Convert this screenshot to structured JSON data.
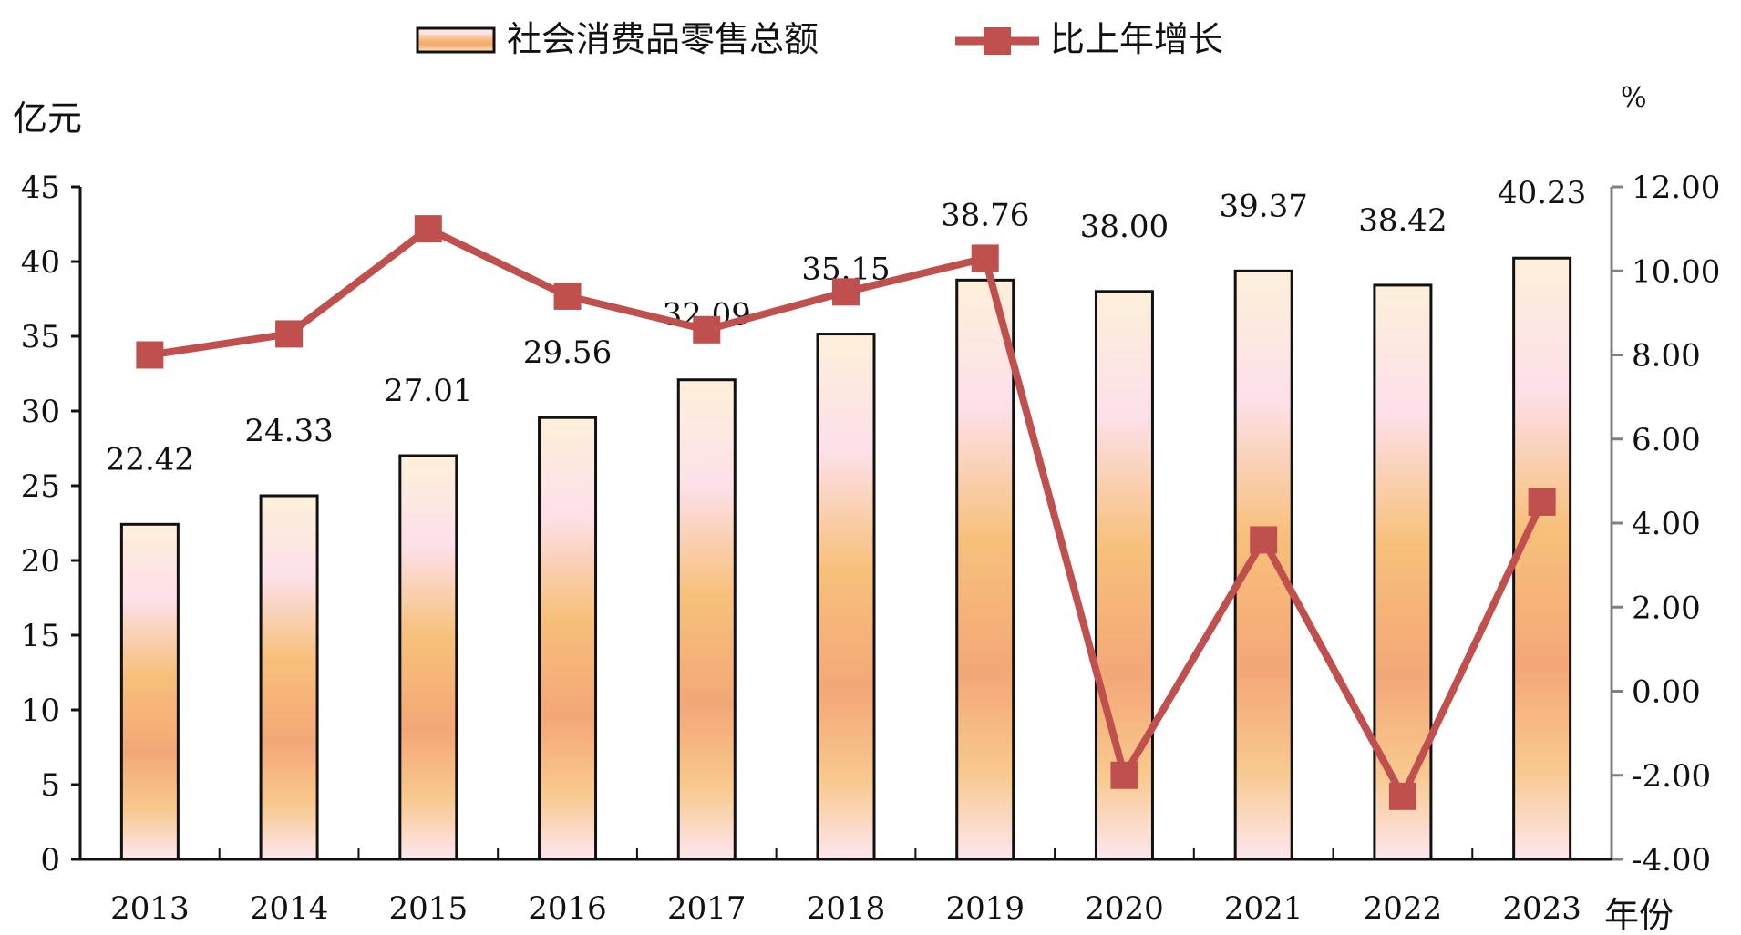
{
  "chart_data": {
    "type": "bar",
    "legend": {
      "bar_series_label": "社会消费品零售总额",
      "line_series_label": "比上年增长",
      "placement": "top-center"
    },
    "ylabel_left": "亿元",
    "ylabel_right": "%",
    "xlabel": "年份",
    "categories": [
      "2013",
      "2014",
      "2015",
      "2016",
      "2017",
      "2018",
      "2019",
      "2020",
      "2021",
      "2022",
      "2023"
    ],
    "series": [
      {
        "name": "社会消费品零售总额",
        "type": "bar",
        "axis": "left",
        "values": [
          22.42,
          24.33,
          27.01,
          29.56,
          32.09,
          35.15,
          38.76,
          38.0,
          39.37,
          38.42,
          40.23
        ],
        "labels": [
          "22.42",
          "24.33",
          "27.01",
          "29.56",
          "32.09",
          "35.15",
          "38.76",
          "38.00",
          "39.37",
          "38.42",
          "40.23"
        ]
      },
      {
        "name": "比上年增长",
        "type": "line",
        "axis": "right",
        "values": [
          8.0,
          8.5,
          11.0,
          9.4,
          8.6,
          9.5,
          10.3,
          -2.0,
          3.6,
          -2.5,
          4.5
        ]
      }
    ],
    "ylim_left": [
      0,
      45
    ],
    "yticks_left": [
      "0",
      "5",
      "10",
      "15",
      "20",
      "25",
      "30",
      "35",
      "40",
      "45"
    ],
    "ylim_right": [
      -4,
      12
    ],
    "yticks_right": [
      "-4.00",
      "-2.00",
      "0.00",
      "2.00",
      "4.00",
      "6.00",
      "8.00",
      "10.00",
      "12.00"
    ],
    "grid": false,
    "colors": {
      "bar_gradient": [
        "#fdf0d9",
        "#fde0ea",
        "#f7c07a",
        "#f4a778",
        "#f8c98e",
        "#fde6ef"
      ],
      "bar_outline": "#111111",
      "line": "#c0504d",
      "axis": "#111111",
      "right_axis": "#808080"
    }
  }
}
